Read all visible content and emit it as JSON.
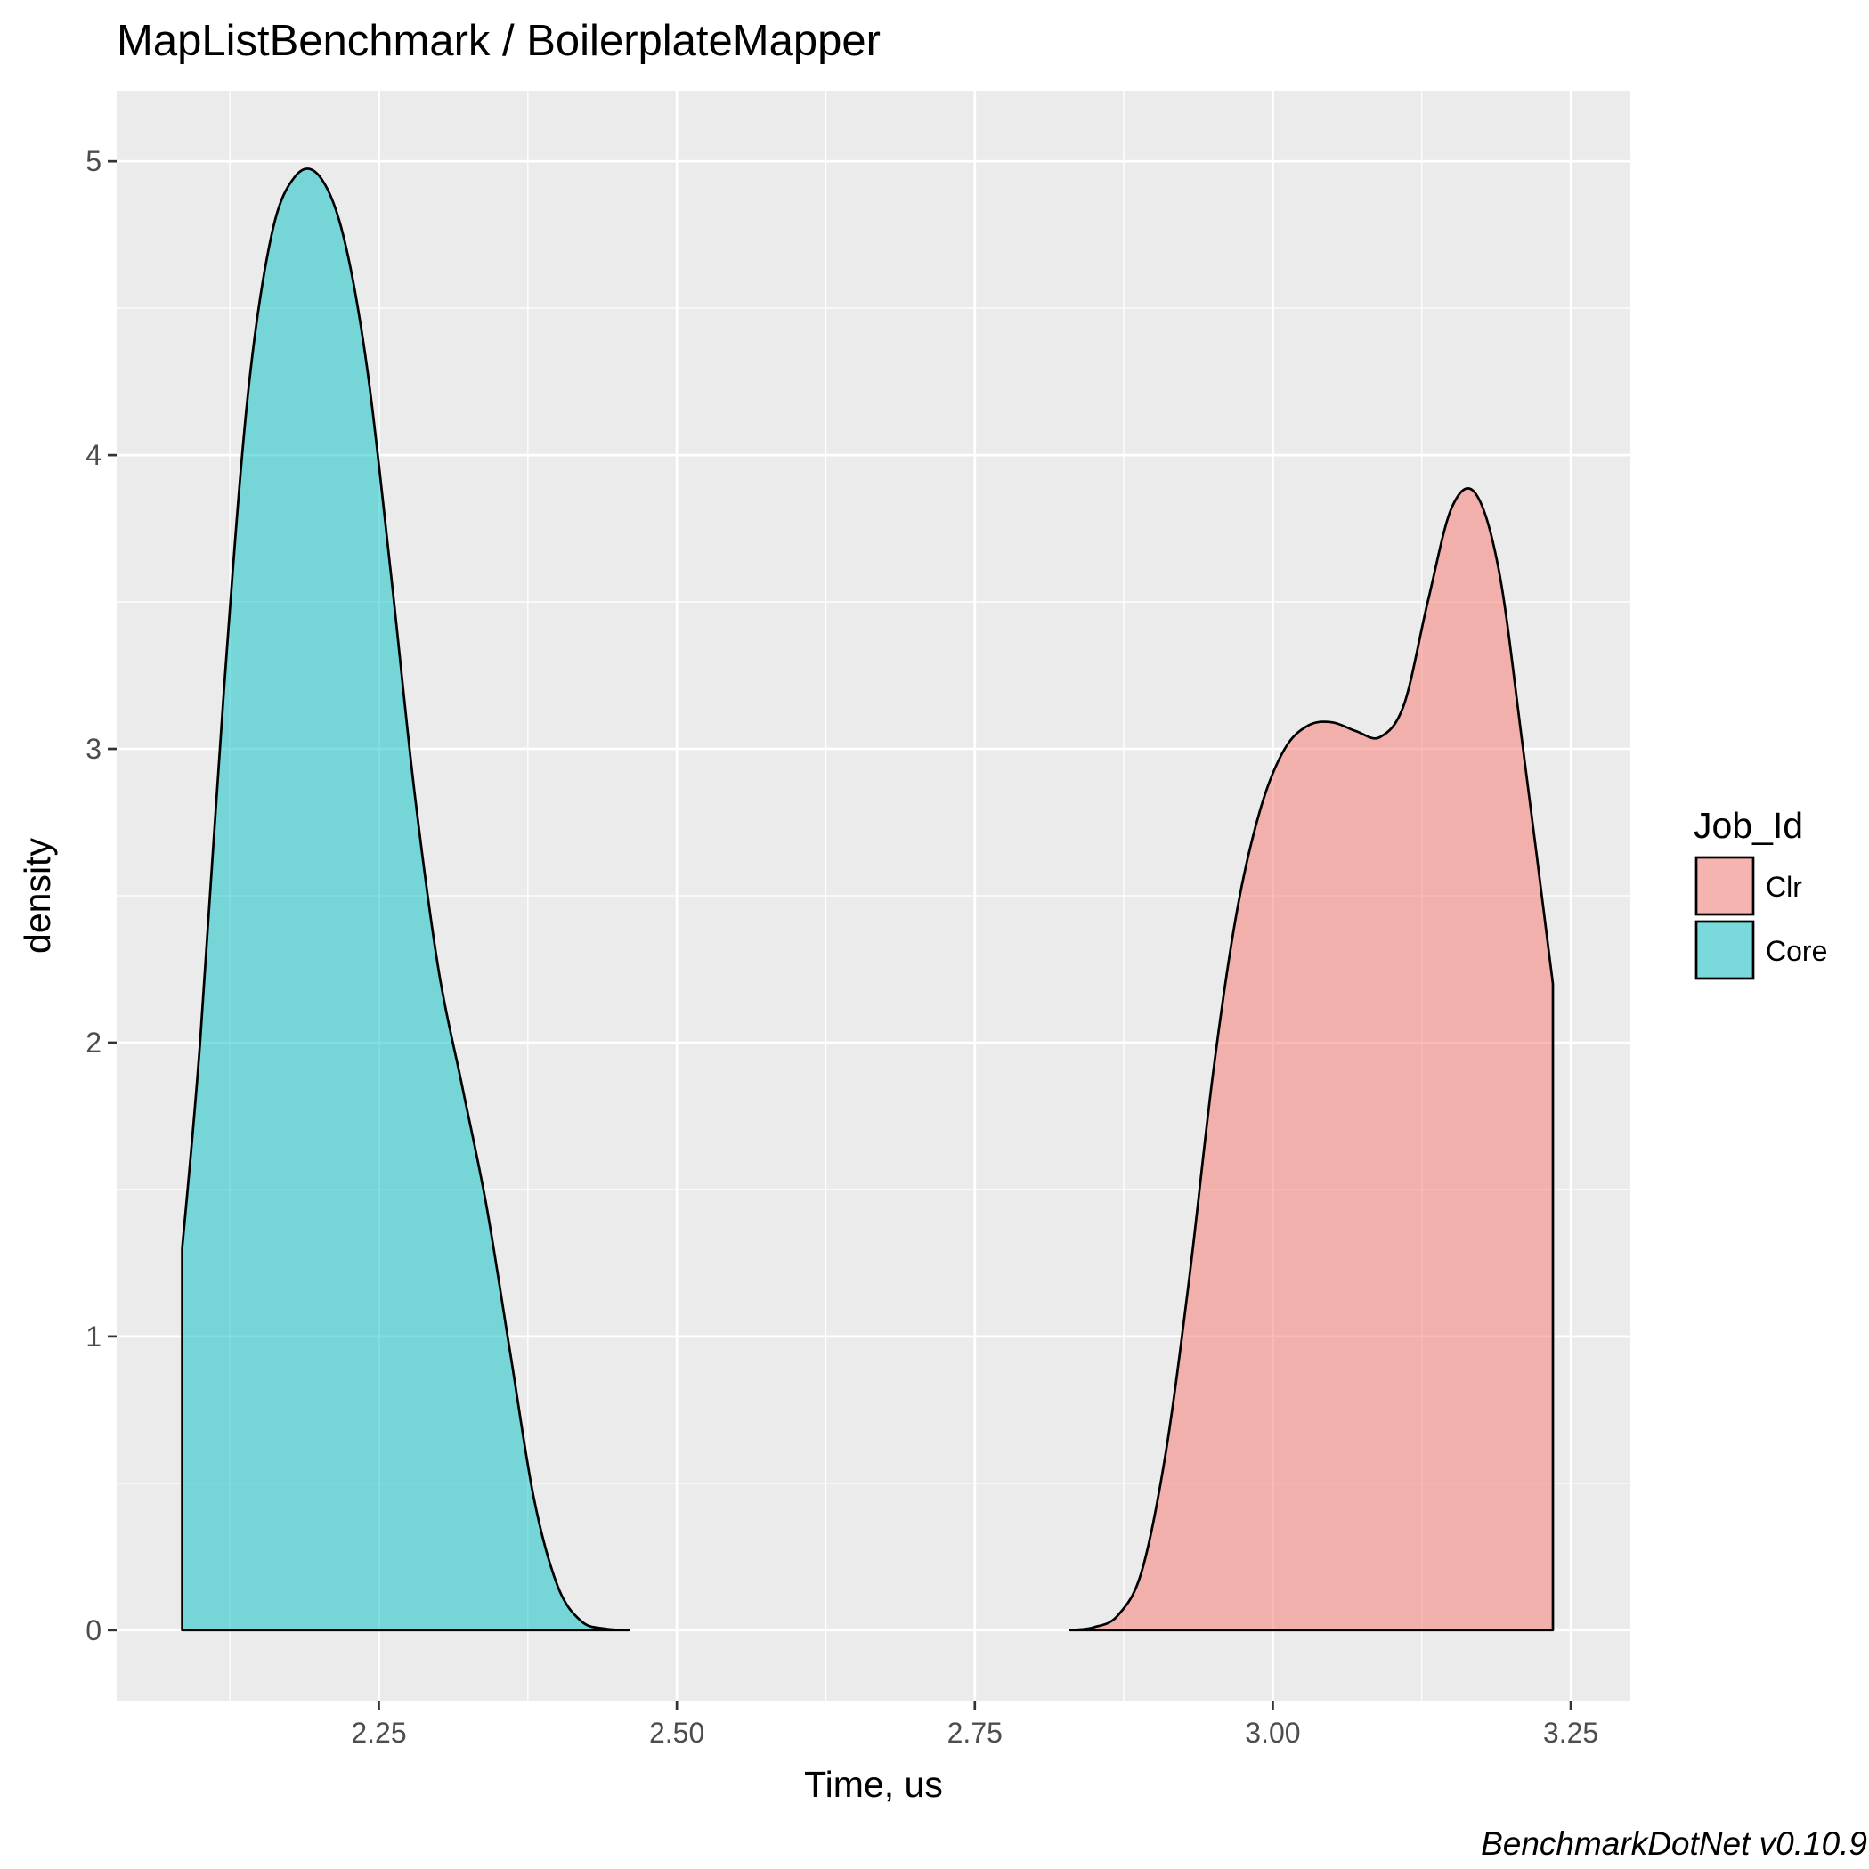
{
  "chart_data": {
    "type": "area",
    "subtype": "density",
    "title": "MapListBenchmark / BoilerplateMapper",
    "xlabel": "Time, us",
    "ylabel": "density",
    "caption": "BenchmarkDotNet v0.10.9",
    "xlim": [
      2.03,
      3.3
    ],
    "ylim": [
      -0.24,
      5.24
    ],
    "x_ticks": [
      2.25,
      2.5,
      2.75,
      3.0,
      3.25
    ],
    "x_tick_labels": [
      "2.25",
      "2.50",
      "2.75",
      "3.00",
      "3.25"
    ],
    "y_ticks": [
      0,
      1,
      2,
      3,
      4,
      5
    ],
    "y_tick_labels": [
      "0",
      "1",
      "2",
      "3",
      "4",
      "5"
    ],
    "grid": true,
    "legend": {
      "title": "Job_Id",
      "position": "right"
    },
    "series": [
      {
        "name": "Clr",
        "color": "#f8766d",
        "x": [
          2.83,
          2.85,
          2.87,
          2.89,
          2.91,
          2.93,
          2.95,
          2.97,
          2.99,
          3.01,
          3.03,
          3.05,
          3.07,
          3.09,
          3.11,
          3.13,
          3.15,
          3.17,
          3.19,
          3.21,
          3.235
        ],
        "y": [
          0.0,
          0.01,
          0.05,
          0.2,
          0.6,
          1.2,
          1.9,
          2.45,
          2.8,
          3.0,
          3.08,
          3.09,
          3.06,
          3.04,
          3.15,
          3.5,
          3.82,
          3.87,
          3.6,
          3.0,
          2.2
        ]
      },
      {
        "name": "Core",
        "color": "#00bfc4",
        "x": [
          2.085,
          2.1,
          2.12,
          2.14,
          2.16,
          2.18,
          2.2,
          2.22,
          2.24,
          2.26,
          2.28,
          2.3,
          2.32,
          2.34,
          2.36,
          2.38,
          2.4,
          2.42,
          2.44,
          2.46
        ],
        "y": [
          1.3,
          2.0,
          3.2,
          4.2,
          4.75,
          4.95,
          4.95,
          4.75,
          4.3,
          3.6,
          2.85,
          2.25,
          1.85,
          1.45,
          0.95,
          0.45,
          0.15,
          0.03,
          0.005,
          0.0
        ]
      }
    ]
  }
}
